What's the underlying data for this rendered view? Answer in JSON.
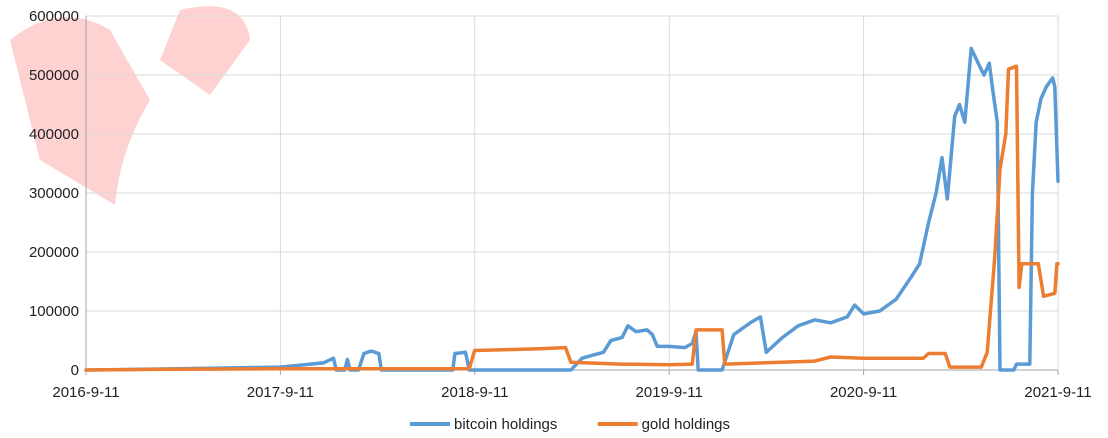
{
  "chart_data": {
    "type": "line",
    "title": "",
    "xlabel": "",
    "ylabel": "",
    "grid": true,
    "legend_position": "bottom",
    "ylim": [
      0,
      600000
    ],
    "xlim": [
      "2016-09-11",
      "2021-09-11"
    ],
    "x_tick_labels": [
      "2016-9-11",
      "2017-9-11",
      "2018-9-11",
      "2019-9-11",
      "2020-9-11",
      "2021-9-11"
    ],
    "y_tick_labels": [
      "0",
      "100000",
      "200000",
      "300000",
      "400000",
      "500000",
      "600000"
    ],
    "series": [
      {
        "name": "bitcoin holdings",
        "color": "#5b9bd5",
        "points": [
          [
            "2016-09-11",
            0
          ],
          [
            "2017-03-01",
            2000
          ],
          [
            "2017-09-11",
            5000
          ],
          [
            "2017-12-01",
            12000
          ],
          [
            "2017-12-20",
            20000
          ],
          [
            "2017-12-25",
            0
          ],
          [
            "2018-01-10",
            0
          ],
          [
            "2018-01-15",
            18000
          ],
          [
            "2018-01-20",
            0
          ],
          [
            "2018-02-05",
            0
          ],
          [
            "2018-02-15",
            28000
          ],
          [
            "2018-03-01",
            32000
          ],
          [
            "2018-03-15",
            28000
          ],
          [
            "2018-03-20",
            0
          ],
          [
            "2018-08-01",
            0
          ],
          [
            "2018-08-05",
            28000
          ],
          [
            "2018-08-25",
            30000
          ],
          [
            "2018-09-01",
            0
          ],
          [
            "2018-09-11",
            0
          ],
          [
            "2019-03-11",
            0
          ],
          [
            "2019-04-01",
            20000
          ],
          [
            "2019-04-20",
            25000
          ],
          [
            "2019-05-11",
            30000
          ],
          [
            "2019-05-25",
            50000
          ],
          [
            "2019-06-15",
            55000
          ],
          [
            "2019-06-26",
            75000
          ],
          [
            "2019-07-11",
            65000
          ],
          [
            "2019-08-01",
            68000
          ],
          [
            "2019-08-11",
            60000
          ],
          [
            "2019-08-20",
            40000
          ],
          [
            "2019-09-11",
            40000
          ],
          [
            "2019-10-11",
            38000
          ],
          [
            "2019-10-25",
            45000
          ],
          [
            "2019-11-01",
            65000
          ],
          [
            "2019-11-05",
            0
          ],
          [
            "2019-12-20",
            0
          ],
          [
            "2020-01-11",
            60000
          ],
          [
            "2020-02-11",
            80000
          ],
          [
            "2020-03-01",
            90000
          ],
          [
            "2020-03-12",
            30000
          ],
          [
            "2020-04-11",
            55000
          ],
          [
            "2020-05-11",
            75000
          ],
          [
            "2020-06-11",
            85000
          ],
          [
            "2020-07-11",
            80000
          ],
          [
            "2020-08-11",
            90000
          ],
          [
            "2020-08-25",
            110000
          ],
          [
            "2020-09-11",
            95000
          ],
          [
            "2020-10-11",
            100000
          ],
          [
            "2020-11-11",
            120000
          ],
          [
            "2020-12-11",
            160000
          ],
          [
            "2020-12-25",
            180000
          ],
          [
            "2021-01-11",
            250000
          ],
          [
            "2021-01-25",
            300000
          ],
          [
            "2021-02-05",
            360000
          ],
          [
            "2021-02-15",
            290000
          ],
          [
            "2021-03-01",
            430000
          ],
          [
            "2021-03-10",
            450000
          ],
          [
            "2021-03-20",
            420000
          ],
          [
            "2021-04-01",
            545000
          ],
          [
            "2021-04-14",
            520000
          ],
          [
            "2021-04-25",
            500000
          ],
          [
            "2021-05-05",
            520000
          ],
          [
            "2021-05-12",
            470000
          ],
          [
            "2021-05-20",
            420000
          ],
          [
            "2021-05-25",
            0
          ],
          [
            "2021-06-20",
            0
          ],
          [
            "2021-06-25",
            10000
          ],
          [
            "2021-07-20",
            10000
          ],
          [
            "2021-07-25",
            300000
          ],
          [
            "2021-08-01",
            420000
          ],
          [
            "2021-08-10",
            460000
          ],
          [
            "2021-08-20",
            480000
          ],
          [
            "2021-09-01",
            495000
          ],
          [
            "2021-09-05",
            480000
          ],
          [
            "2021-09-11",
            320000
          ]
        ]
      },
      {
        "name": "gold holdings",
        "color": "#ed7d31",
        "points": [
          [
            "2016-09-11",
            0
          ],
          [
            "2017-01-11",
            1000
          ],
          [
            "2017-09-11",
            2000
          ],
          [
            "2018-06-11",
            2000
          ],
          [
            "2018-09-01",
            2000
          ],
          [
            "2018-09-11",
            33000
          ],
          [
            "2019-01-11",
            36000
          ],
          [
            "2019-03-01",
            38000
          ],
          [
            "2019-03-11",
            13000
          ],
          [
            "2019-06-11",
            10000
          ],
          [
            "2019-09-11",
            9000
          ],
          [
            "2019-10-25",
            10000
          ],
          [
            "2019-11-01",
            68000
          ],
          [
            "2019-12-20",
            68000
          ],
          [
            "2019-12-25",
            10000
          ],
          [
            "2020-06-11",
            15000
          ],
          [
            "2020-07-11",
            22000
          ],
          [
            "2020-09-11",
            20000
          ],
          [
            "2021-01-01",
            20000
          ],
          [
            "2021-01-11",
            28000
          ],
          [
            "2021-02-11",
            28000
          ],
          [
            "2021-02-20",
            5000
          ],
          [
            "2021-04-20",
            5000
          ],
          [
            "2021-05-01",
            30000
          ],
          [
            "2021-05-15",
            190000
          ],
          [
            "2021-05-25",
            340000
          ],
          [
            "2021-06-05",
            400000
          ],
          [
            "2021-06-10",
            510000
          ],
          [
            "2021-06-25",
            515000
          ],
          [
            "2021-06-30",
            140000
          ],
          [
            "2021-07-05",
            180000
          ],
          [
            "2021-08-05",
            180000
          ],
          [
            "2021-08-15",
            125000
          ],
          [
            "2021-09-05",
            130000
          ],
          [
            "2021-09-09",
            180000
          ],
          [
            "2021-09-11",
            180000
          ]
        ]
      }
    ]
  }
}
